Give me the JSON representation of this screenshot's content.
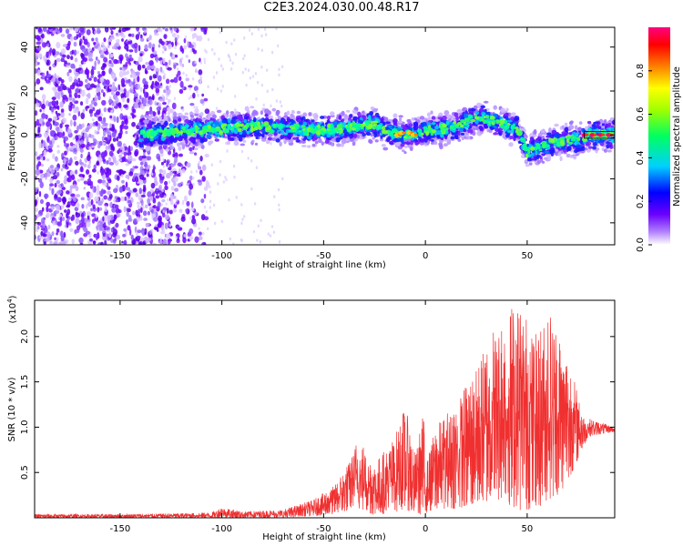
{
  "chart_data": [
    {
      "type": "heatmap",
      "title": "C2E3.2024.030.00.48.R17",
      "xlabel": "Height of straight line (km)",
      "ylabel": "Frequency (Hz)",
      "xlim": [
        -192,
        93
      ],
      "ylim": [
        -50,
        49
      ],
      "x_ticks": [
        -150,
        -100,
        -50,
        0,
        50
      ],
      "y_ticks": [
        -40,
        -20,
        0,
        20,
        40
      ],
      "colorbar": {
        "label": "Normalized spectral amplitude",
        "range": [
          0.0,
          1.0
        ],
        "ticks": [
          0.0,
          0.2,
          0.4,
          0.6,
          0.8
        ],
        "tick_labels": [
          "0.0",
          "0.2",
          "0.4",
          "0.6",
          "0.8"
        ],
        "colormap": [
          "#ffffff",
          "#6a00ff",
          "#0000ff",
          "#00d0ff",
          "#00ff60",
          "#ffff00",
          "#ff8000",
          "#ff0000",
          "#ff0080"
        ]
      },
      "ridge": {
        "x": [
          -145,
          -130,
          -115,
          -100,
          -85,
          -70,
          -55,
          -40,
          -25,
          -20,
          -10,
          -5,
          0,
          10,
          18,
          25,
          35,
          45,
          50,
          55,
          65,
          75,
          80,
          93
        ],
        "freq": [
          0,
          1,
          2,
          3,
          4,
          3,
          2,
          3,
          5,
          2,
          0,
          1,
          2,
          3,
          5,
          8,
          6,
          3,
          -8,
          -6,
          -3,
          -2,
          0,
          0
        ]
      }
    },
    {
      "type": "line",
      "xlabel": "Height of straight line (km)",
      "ylabel": "SNR (10 * v/v)",
      "y_multiplier": "(x10",
      "y_multiplier_exp": "4",
      "xlim": [
        -192,
        93
      ],
      "ylim": [
        0,
        24000
      ],
      "x_ticks": [
        -150,
        -100,
        -50,
        0,
        50
      ],
      "y_ticks": [
        5000,
        10000,
        15000,
        20000
      ],
      "y_tick_labels": [
        "0.5",
        "1.0",
        "1.5",
        "2.0"
      ],
      "color": "#f03030",
      "envelope": {
        "x": [
          -192,
          -150,
          -120,
          -105,
          -100,
          -90,
          -70,
          -55,
          -45,
          -38,
          -33,
          -25,
          -15,
          -10,
          -5,
          -1,
          0,
          5,
          15,
          25,
          35,
          45,
          55,
          60,
          65,
          70,
          78,
          80,
          93
        ],
        "max": [
          400,
          400,
          500,
          600,
          1200,
          700,
          900,
          2000,
          3500,
          6000,
          9000,
          6000,
          9000,
          12500,
          7000,
          12000,
          6000,
          10000,
          13000,
          16500,
          22000,
          24500,
          20000,
          24000,
          21000,
          18000,
          11000,
          11000,
          10000
        ],
        "min": [
          0,
          0,
          0,
          0,
          0,
          0,
          0,
          200,
          400,
          800,
          1000,
          300,
          600,
          900,
          500,
          300,
          500,
          1000,
          1000,
          1500,
          2000,
          800,
          1000,
          2000,
          2500,
          4000,
          8000,
          9000,
          9500
        ]
      }
    }
  ]
}
